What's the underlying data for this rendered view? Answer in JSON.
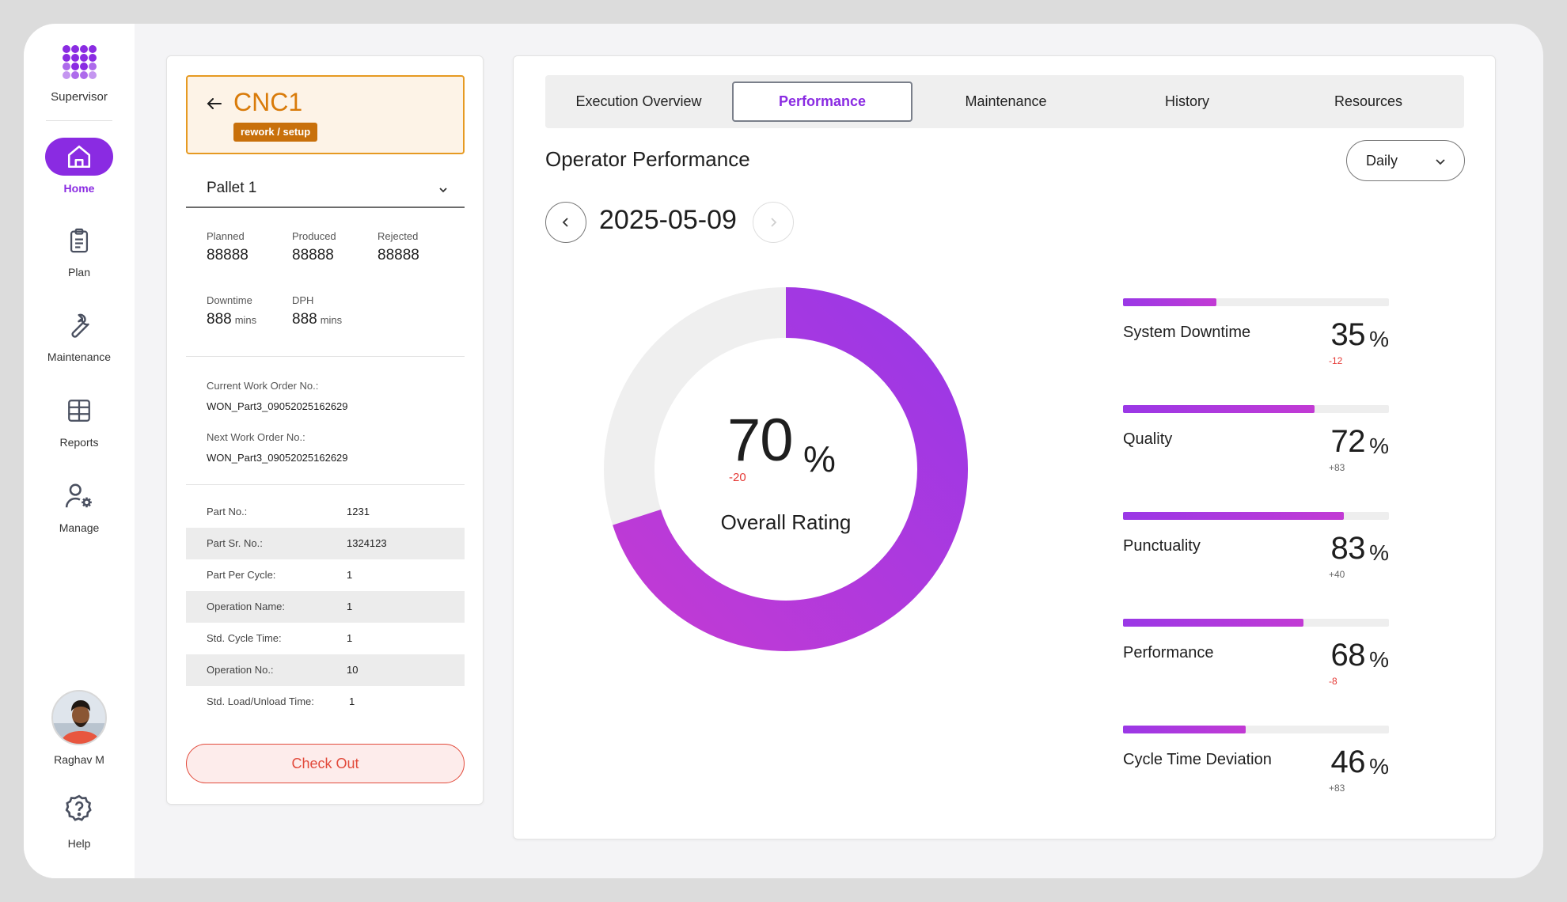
{
  "sidebar": {
    "app_label": "Supervisor",
    "nav": [
      {
        "label": "Home",
        "icon": "home-icon",
        "active": true
      },
      {
        "label": "Plan",
        "icon": "clipboard-icon",
        "active": false
      },
      {
        "label": "Maintenance",
        "icon": "wrench-icon",
        "active": false
      },
      {
        "label": "Reports",
        "icon": "table-icon",
        "active": false
      },
      {
        "label": "Manage",
        "icon": "user-settings-icon",
        "active": false
      }
    ],
    "user_name": "Raghav M",
    "help_label": "Help"
  },
  "machine": {
    "name": "CNC1",
    "status": "rework / setup",
    "pallet": "Pallet 1"
  },
  "stats": {
    "planned_label": "Planned",
    "planned": "88888",
    "produced_label": "Produced",
    "produced": "88888",
    "rejected_label": "Rejected",
    "rejected": "88888",
    "downtime_label": "Downtime",
    "downtime": "888",
    "downtime_unit": "mins",
    "dph_label": "DPH",
    "dph": "888",
    "dph_unit": "mins"
  },
  "work_orders": {
    "current_label": "Current Work Order No.:",
    "current": "WON_Part3_09052025162629",
    "next_label": "Next Work Order No.:",
    "next": "WON_Part3_09052025162629"
  },
  "part_details": [
    {
      "key": "Part No.:",
      "value": "1231"
    },
    {
      "key": "Part Sr. No.:",
      "value": "1324123"
    },
    {
      "key": "Part Per Cycle:",
      "value": "1"
    },
    {
      "key": "Operation Name:",
      "value": "1"
    },
    {
      "key": "Std. Cycle Time:",
      "value": "1"
    },
    {
      "key": "Operation No.:",
      "value": "10"
    },
    {
      "key": "Std. Load/Unload Time:",
      "value": "1"
    }
  ],
  "checkout_label": "Check Out",
  "tabs": [
    "Execution Overview",
    "Performance",
    "Maintenance",
    "History",
    "Resources"
  ],
  "active_tab": "Performance",
  "performance": {
    "title": "Operator Performance",
    "period": "Daily",
    "date": "2025-05-09",
    "overall": {
      "value": 70,
      "display": "70",
      "pct_sign": "%",
      "delta": "-20",
      "label": "Overall Rating"
    },
    "metrics": [
      {
        "name": "System Downtime",
        "value": 35,
        "display": "35",
        "pct_sign": "%",
        "delta": "-12",
        "delta_sign": "neg"
      },
      {
        "name": "Quality",
        "value": 72,
        "display": "72",
        "pct_sign": "%",
        "delta": "+83",
        "delta_sign": "pos"
      },
      {
        "name": "Punctuality",
        "value": 83,
        "display": "83",
        "pct_sign": "%",
        "delta": "+40",
        "delta_sign": "pos"
      },
      {
        "name": "Performance",
        "value": 68,
        "display": "68",
        "pct_sign": "%",
        "delta": "-8",
        "delta_sign": "neg"
      },
      {
        "name": "Cycle Time Deviation",
        "value": 46,
        "display": "46",
        "pct_sign": "%",
        "delta": "+83",
        "delta_sign": "pos"
      }
    ]
  },
  "colors": {
    "accent": "#8a2be2",
    "warning": "#d97b0a",
    "danger": "#e24a3b",
    "donut_start": "#c23ad4",
    "donut_end": "#9a38e6",
    "track": "#eeeeee"
  }
}
